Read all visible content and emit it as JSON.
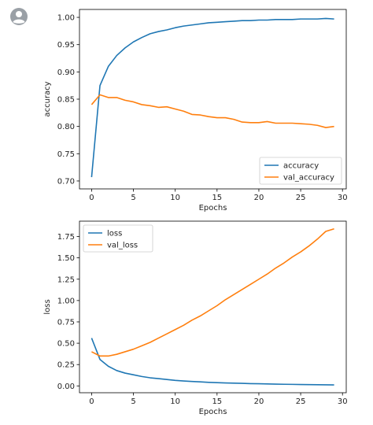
{
  "avatar": {
    "icon": "user-avatar-icon",
    "color": "#9aa0a6"
  },
  "chart_data": [
    {
      "type": "line",
      "title": "",
      "xlabel": "Epochs",
      "ylabel": "accuracy",
      "xlim": [
        -1.45,
        30.45
      ],
      "ylim": [
        0.6855,
        1.0145
      ],
      "xticks": [
        0,
        5,
        10,
        15,
        20,
        25,
        30
      ],
      "xtick_labels": [
        "0",
        "5",
        "10",
        "15",
        "20",
        "25",
        "30"
      ],
      "yticks": [
        0.7,
        0.75,
        0.8,
        0.85,
        0.9,
        0.95,
        1.0
      ],
      "ytick_labels": [
        "0.70",
        "0.75",
        "0.80",
        "0.85",
        "0.90",
        "0.95",
        "1.00"
      ],
      "grid": false,
      "legend": "lower-right",
      "x": [
        0,
        1,
        2,
        3,
        4,
        5,
        6,
        7,
        8,
        9,
        10,
        11,
        12,
        13,
        14,
        15,
        16,
        17,
        18,
        19,
        20,
        21,
        22,
        23,
        24,
        25,
        26,
        27,
        28,
        29
      ],
      "series": [
        {
          "name": "accuracy",
          "color": "#1f77b4",
          "values": [
            0.707,
            0.875,
            0.91,
            0.93,
            0.944,
            0.955,
            0.963,
            0.97,
            0.974,
            0.977,
            0.981,
            0.984,
            0.986,
            0.988,
            0.99,
            0.991,
            0.992,
            0.993,
            0.994,
            0.994,
            0.995,
            0.995,
            0.996,
            0.996,
            0.996,
            0.997,
            0.997,
            0.997,
            0.998,
            0.997
          ]
        },
        {
          "name": "val_accuracy",
          "color": "#ff7f0e",
          "values": [
            0.84,
            0.858,
            0.853,
            0.853,
            0.848,
            0.845,
            0.84,
            0.838,
            0.835,
            0.836,
            0.832,
            0.828,
            0.822,
            0.821,
            0.818,
            0.816,
            0.816,
            0.813,
            0.808,
            0.807,
            0.807,
            0.809,
            0.806,
            0.806,
            0.806,
            0.805,
            0.804,
            0.802,
            0.798,
            0.8
          ]
        }
      ]
    },
    {
      "type": "line",
      "title": "",
      "xlabel": "Epochs",
      "ylabel": "loss",
      "xlim": [
        -1.45,
        30.45
      ],
      "ylim": [
        -0.08,
        1.93
      ],
      "xticks": [
        0,
        5,
        10,
        15,
        20,
        25,
        30
      ],
      "xtick_labels": [
        "0",
        "5",
        "10",
        "15",
        "20",
        "25",
        "30"
      ],
      "yticks": [
        0.0,
        0.25,
        0.5,
        0.75,
        1.0,
        1.25,
        1.5,
        1.75
      ],
      "ytick_labels": [
        "0.00",
        "0.25",
        "0.50",
        "0.75",
        "1.00",
        "1.25",
        "1.50",
        "1.75"
      ],
      "grid": false,
      "legend": "upper-left",
      "x": [
        0,
        1,
        2,
        3,
        4,
        5,
        6,
        7,
        8,
        9,
        10,
        11,
        12,
        13,
        14,
        15,
        16,
        17,
        18,
        19,
        20,
        21,
        22,
        23,
        24,
        25,
        26,
        27,
        28,
        29
      ],
      "series": [
        {
          "name": "loss",
          "color": "#1f77b4",
          "values": [
            0.56,
            0.31,
            0.23,
            0.18,
            0.15,
            0.13,
            0.11,
            0.095,
            0.085,
            0.075,
            0.065,
            0.058,
            0.052,
            0.047,
            0.042,
            0.038,
            0.035,
            0.032,
            0.03,
            0.027,
            0.025,
            0.023,
            0.021,
            0.019,
            0.018,
            0.016,
            0.015,
            0.014,
            0.013,
            0.012
          ]
        },
        {
          "name": "val_loss",
          "color": "#ff7f0e",
          "values": [
            0.4,
            0.35,
            0.35,
            0.37,
            0.4,
            0.43,
            0.47,
            0.51,
            0.56,
            0.61,
            0.66,
            0.71,
            0.77,
            0.82,
            0.88,
            0.94,
            1.01,
            1.07,
            1.13,
            1.19,
            1.25,
            1.31,
            1.38,
            1.44,
            1.51,
            1.57,
            1.64,
            1.72,
            1.81,
            1.84
          ]
        }
      ]
    }
  ]
}
